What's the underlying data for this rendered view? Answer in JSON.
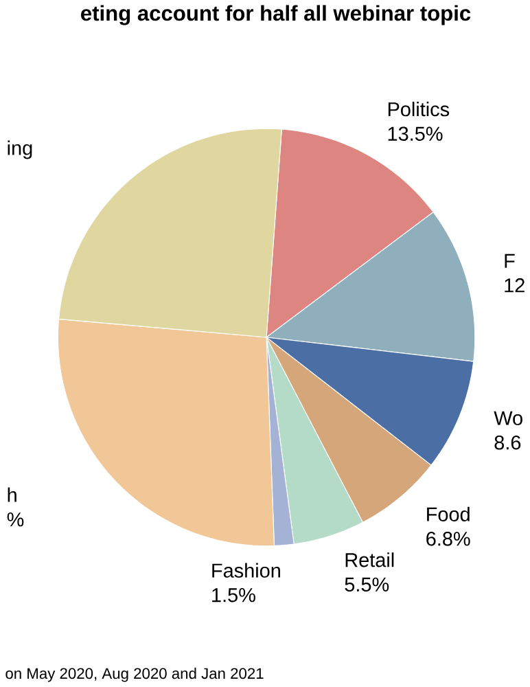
{
  "chart_data": {
    "type": "pie",
    "title": "eting account for half all webinar topic",
    "categories": [
      "Politics",
      "F",
      "Wo",
      "Food",
      "Retail",
      "Fashion",
      "h",
      "ing"
    ],
    "values": [
      13.5,
      12,
      8.6,
      6.8,
      5.5,
      1.5,
      26.8,
      24.6
    ],
    "value_labels": [
      "13.5%",
      "12",
      "8.6",
      "6.8%",
      "5.5%",
      "1.5%",
      "%",
      null
    ],
    "colors": [
      "#dd8580",
      "#8fafbc",
      "#4b6fa5",
      "#d4a67a",
      "#b3dbc7",
      "#a4b2d6",
      "#f2c797",
      "#e0d7a0"
    ],
    "annotations": [
      "on May 2020, Aug 2020 and Jan 2021"
    ]
  }
}
